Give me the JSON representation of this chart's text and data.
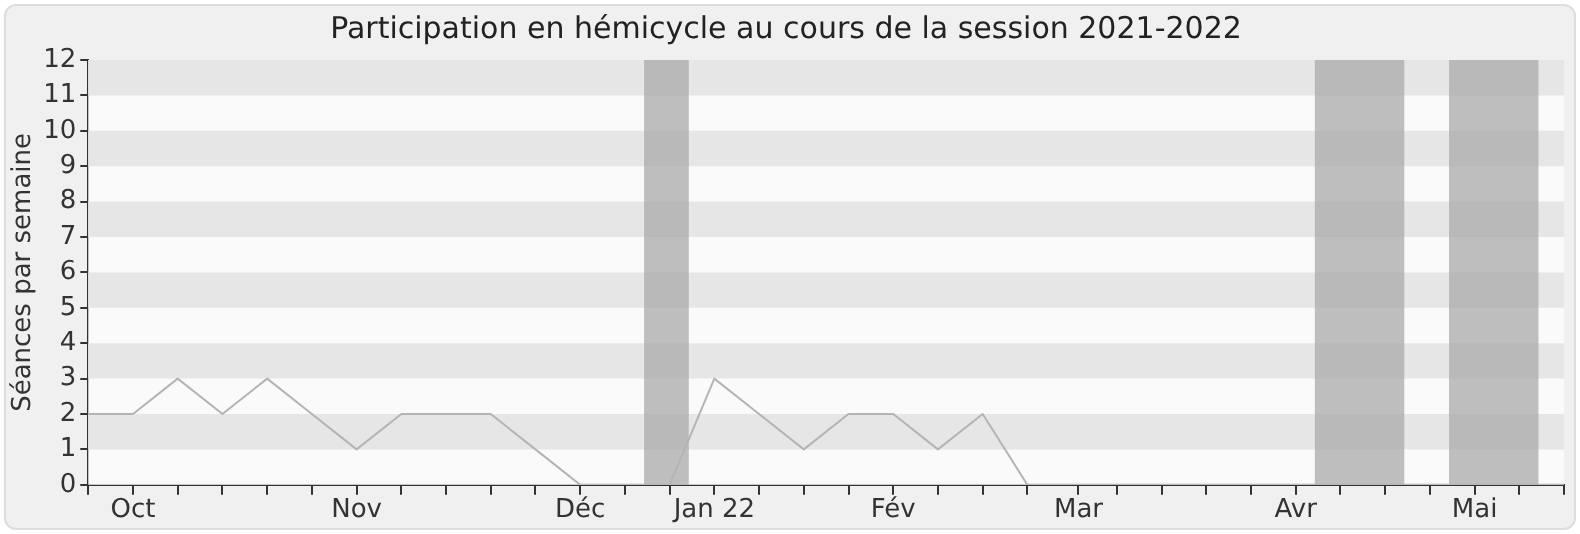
{
  "chart_data": {
    "type": "line",
    "title": "Participation en hémicycle au cours de la session 2021-2022",
    "ylabel": "Séances par semaine",
    "x": [
      "2021-09-27",
      "2021-10-04",
      "2021-10-11",
      "2021-10-18",
      "2021-10-25",
      "2021-11-01",
      "2021-11-08",
      "2021-11-15",
      "2021-11-22",
      "2021-11-29",
      "2021-12-06",
      "2021-12-13",
      "2021-12-20",
      "2021-12-27",
      "2022-01-03",
      "2022-01-10",
      "2022-01-17",
      "2022-01-24",
      "2022-01-31",
      "2022-02-07",
      "2022-02-14",
      "2022-02-21",
      "2022-02-28",
      "2022-03-07",
      "2022-03-14",
      "2022-03-21",
      "2022-03-28",
      "2022-04-04",
      "2022-04-11",
      "2022-04-18",
      "2022-04-25",
      "2022-05-02",
      "2022-05-09",
      "2022-05-16"
    ],
    "series": [
      {
        "color": "#b4b4b4",
        "values": [
          2,
          2,
          3,
          2,
          3,
          2,
          1,
          2,
          2,
          2,
          1,
          0,
          0,
          0,
          3,
          2,
          1,
          2,
          2,
          1,
          2,
          0,
          0,
          0,
          0,
          0,
          0,
          0,
          0,
          0,
          0,
          0,
          0,
          0
        ]
      }
    ],
    "xlim": [
      "2021-09-27",
      "2022-05-16"
    ],
    "xticks": [
      {
        "value": "2021-09-27",
        "label": null
      },
      {
        "value": "2021-10-04",
        "label": "Oct"
      },
      {
        "value": "2021-10-11",
        "label": null
      },
      {
        "value": "2021-10-18",
        "label": null
      },
      {
        "value": "2021-10-25",
        "label": null
      },
      {
        "value": "2021-11-01",
        "label": null
      },
      {
        "value": "2021-11-08",
        "label": "Nov"
      },
      {
        "value": "2021-11-15",
        "label": null
      },
      {
        "value": "2021-11-22",
        "label": null
      },
      {
        "value": "2021-11-29",
        "label": null
      },
      {
        "value": "2021-12-06",
        "label": null
      },
      {
        "value": "2021-12-13",
        "label": "Déc"
      },
      {
        "value": "2021-12-20",
        "label": null
      },
      {
        "value": "2021-12-27",
        "label": null
      },
      {
        "value": "2022-01-03",
        "label": "Jan 22"
      },
      {
        "value": "2022-01-10",
        "label": null
      },
      {
        "value": "2022-01-17",
        "label": null
      },
      {
        "value": "2022-01-24",
        "label": null
      },
      {
        "value": "2022-01-31",
        "label": "Fév"
      },
      {
        "value": "2022-02-07",
        "label": null
      },
      {
        "value": "2022-02-14",
        "label": null
      },
      {
        "value": "2022-02-21",
        "label": null
      },
      {
        "value": "2022-03-01",
        "label": "Mar"
      },
      {
        "value": "2022-03-07",
        "label": null
      },
      {
        "value": "2022-03-14",
        "label": null
      },
      {
        "value": "2022-03-21",
        "label": null
      },
      {
        "value": "2022-03-28",
        "label": null
      },
      {
        "value": "2022-04-04",
        "label": "Avr"
      },
      {
        "value": "2022-04-11",
        "label": null
      },
      {
        "value": "2022-04-18",
        "label": null
      },
      {
        "value": "2022-04-25",
        "label": null
      },
      {
        "value": "2022-05-02",
        "label": "Mai"
      },
      {
        "value": "2022-05-09",
        "label": null
      },
      {
        "value": "2022-05-16",
        "label": null
      }
    ],
    "ylim": [
      0,
      12
    ],
    "yticks": [
      0,
      1,
      2,
      3,
      4,
      5,
      6,
      7,
      8,
      9,
      10,
      11,
      12
    ],
    "legend": false,
    "marker": "none",
    "line_style": "solid",
    "bands": [
      {
        "axis": "x",
        "from": "2021-12-23",
        "to": "2021-12-30",
        "color": "#aaaaaa"
      },
      {
        "axis": "x",
        "from": "2022-04-07",
        "to": "2022-04-21",
        "color": "#aaaaaa"
      },
      {
        "axis": "x",
        "from": "2022-04-28",
        "to": "2022-05-12",
        "color": "#aaaaaa"
      }
    ]
  }
}
